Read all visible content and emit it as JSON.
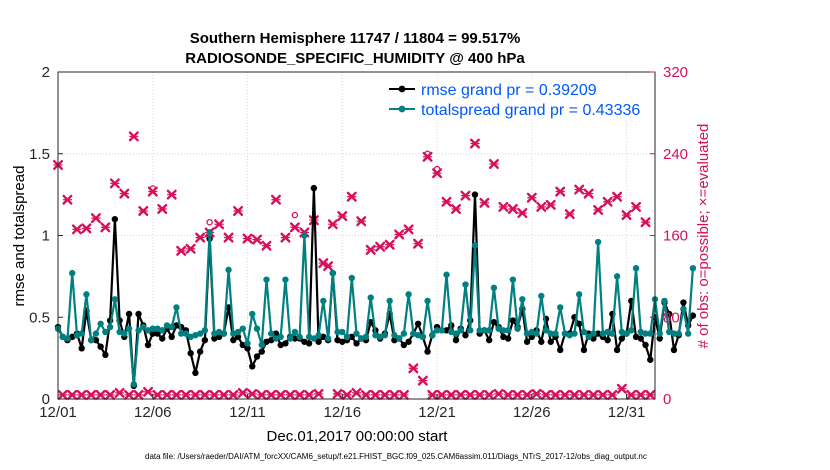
{
  "colors": {
    "rmse": "#000000",
    "spread": "#008080",
    "obs": "#d6105c",
    "legend_text": "#0057ff",
    "axis": "#262626",
    "grid": "#d7d7d7"
  },
  "chart_data": {
    "type": "line",
    "title": "Southern Hemisphere 11747 / 11804 = 99.517%",
    "subtitle": "RADIOSONDE_SPECIFIC_HUMIDITY @ 400 hPa",
    "xlabel": "Dec.01,2017 00:00:00 start",
    "ylabel_left": "rmse and totalspread",
    "ylabel_right": "# of obs: o=possible; ×=evaluated",
    "footer": "data file: /Users/raeder/DAI/ATM_forcXX/CAM6_setup/f.e21.FHIST_BGC.f09_025.CAM6assim.011/Diags_NTrS_2017-12/obs_diag_output.nc",
    "xlim": [
      0,
      31.5
    ],
    "ylim_left": [
      0,
      2
    ],
    "ylim_right": [
      0,
      320
    ],
    "x_ticks": [
      0,
      5,
      10,
      15,
      20,
      25,
      30
    ],
    "x_tick_labels": [
      "12/01",
      "12/06",
      "12/11",
      "12/16",
      "12/21",
      "12/26",
      "12/31"
    ],
    "y_left_ticks": [
      0,
      0.5,
      1,
      1.5,
      2
    ],
    "y_left_tick_labels": [
      "0",
      "0.5",
      "1",
      "1.5",
      "2"
    ],
    "y_right_ticks": [
      0,
      80,
      160,
      240,
      320
    ],
    "y_right_tick_labels": [
      "0",
      "80",
      "160",
      "240",
      "320"
    ],
    "legend_position": "top-right",
    "x_step_days": 0.25,
    "series": [
      {
        "name": "rmse",
        "legend": "rmse grand pr = 0.39209",
        "values": [
          0.44,
          0.38,
          0.36,
          0.38,
          0.4,
          0.31,
          0.54,
          0.36,
          0.36,
          0.32,
          0.27,
          0.48,
          1.1,
          0.48,
          0.38,
          0.52,
          0.08,
          0.52,
          0.45,
          0.33,
          0.4,
          0.4,
          0.37,
          0.43,
          0.38,
          0.45,
          0.44,
          0.42,
          0.28,
          0.16,
          0.29,
          0.36,
          0.98,
          0.37,
          0.38,
          0.4,
          0.56,
          0.36,
          0.38,
          0.33,
          0.31,
          0.2,
          0.26,
          0.29,
          0.35,
          0.36,
          0.4,
          0.33,
          0.34,
          0.38,
          0.37,
          0.37,
          0.35,
          0.34,
          1.29,
          0.35,
          0.38,
          0.36,
          0.77,
          0.36,
          0.35,
          0.36,
          0.38,
          0.34,
          0.37,
          0.36,
          0.47,
          0.42,
          0.37,
          0.4,
          0.52,
          0.36,
          0.37,
          0.33,
          0.35,
          0.4,
          0.46,
          0.38,
          0.29,
          0.39,
          0.44,
          0.42,
          0.42,
          0.45,
          0.36,
          0.43,
          0.39,
          0.48,
          1.25,
          0.4,
          0.42,
          0.36,
          0.47,
          0.44,
          0.38,
          0.37,
          0.48,
          0.44,
          0.55,
          0.35,
          0.38,
          0.42,
          0.35,
          0.49,
          0.35,
          0.38,
          0.3,
          0.4,
          0.4,
          0.5,
          0.46,
          0.3,
          0.4,
          0.37,
          0.4,
          0.38,
          0.36,
          0.52,
          0.3,
          0.37,
          0.4,
          0.6,
          0.38,
          0.37,
          0.33,
          0.24,
          0.5,
          0.37,
          0.59,
          0.52,
          0.3,
          0.39,
          0.59,
          0.45,
          0.51
        ]
      },
      {
        "name": "totalspread",
        "legend": "totalspread grand pr = 0.43336",
        "values": [
          0.43,
          0.38,
          0.37,
          0.77,
          0.39,
          0.4,
          0.64,
          0.36,
          0.4,
          0.46,
          0.41,
          0.44,
          0.61,
          0.41,
          0.4,
          0.43,
          0.09,
          0.42,
          0.44,
          0.42,
          0.43,
          0.43,
          0.42,
          0.45,
          0.44,
          0.56,
          0.4,
          0.4,
          0.38,
          0.39,
          0.4,
          0.42,
          1.02,
          0.4,
          0.41,
          0.4,
          0.79,
          0.4,
          0.41,
          0.43,
          0.34,
          0.52,
          0.43,
          0.33,
          0.73,
          0.4,
          0.37,
          0.38,
          0.73,
          0.37,
          0.41,
          0.38,
          1.0,
          0.38,
          0.37,
          0.39,
          0.6,
          0.37,
          0.77,
          0.41,
          0.41,
          0.38,
          0.74,
          0.4,
          0.37,
          0.38,
          0.62,
          0.39,
          0.38,
          0.39,
          0.6,
          0.39,
          0.37,
          0.4,
          0.64,
          0.4,
          0.39,
          0.38,
          0.6,
          0.39,
          0.42,
          0.42,
          0.76,
          0.41,
          0.4,
          0.42,
          0.7,
          0.42,
          0.94,
          0.42,
          0.42,
          0.42,
          0.68,
          0.43,
          0.42,
          0.42,
          0.73,
          0.43,
          0.61,
          0.4,
          0.41,
          0.4,
          0.63,
          0.42,
          0.4,
          0.4,
          0.56,
          0.4,
          0.39,
          0.4,
          0.64,
          0.41,
          0.38,
          0.4,
          0.96,
          0.4,
          0.41,
          0.4,
          0.75,
          0.41,
          0.4,
          0.42,
          0.8,
          0.41,
          0.4,
          0.4,
          0.61,
          0.4,
          0.6,
          0.41,
          0.4,
          0.4,
          0.55,
          0.4,
          0.8
        ]
      },
      {
        "name": "obs_evaluated",
        "values": [
          229,
          4,
          195,
          4,
          166,
          4,
          167,
          4,
          177,
          4,
          168,
          4,
          211,
          6,
          201,
          4,
          257,
          4,
          184,
          7,
          203,
          4,
          186,
          4,
          200,
          4,
          145,
          4,
          147,
          4,
          158,
          4,
          163,
          4,
          171,
          4,
          158,
          4,
          184,
          6,
          157,
          5,
          156,
          4,
          150,
          4,
          195,
          4,
          158,
          4,
          168,
          4,
          163,
          4,
          175,
          5,
          133,
          130,
          171,
          5,
          179,
          4,
          198,
          6,
          174,
          4,
          146,
          4,
          149,
          4,
          151,
          4,
          161,
          4,
          166,
          30,
          152,
          18,
          237,
          4,
          221,
          4,
          193,
          4,
          186,
          4,
          199,
          4,
          250,
          4,
          192,
          4,
          230,
          5,
          188,
          4,
          186,
          4,
          182,
          4,
          197,
          5,
          188,
          4,
          190,
          4,
          203,
          4,
          181,
          4,
          205,
          4,
          201,
          4,
          185,
          4,
          193,
          4,
          198,
          10,
          180,
          4,
          188,
          4,
          173,
          4
        ]
      },
      {
        "name": "obs_possible",
        "values": [
          230,
          5,
          196,
          5,
          167,
          5,
          168,
          5,
          178,
          5,
          169,
          5,
          212,
          7,
          202,
          5,
          258,
          5,
          185,
          8,
          206,
          5,
          187,
          5,
          201,
          5,
          146,
          5,
          148,
          5,
          159,
          5,
          173,
          5,
          172,
          5,
          159,
          5,
          185,
          7,
          158,
          6,
          157,
          5,
          151,
          5,
          196,
          5,
          159,
          5,
          180,
          5,
          164,
          5,
          176,
          6,
          135,
          131,
          172,
          6,
          180,
          5,
          199,
          7,
          175,
          5,
          147,
          5,
          150,
          5,
          152,
          5,
          162,
          5,
          167,
          31,
          153,
          19,
          240,
          5,
          225,
          5,
          194,
          5,
          187,
          5,
          200,
          5,
          251,
          5,
          193,
          5,
          231,
          6,
          189,
          5,
          187,
          5,
          183,
          5,
          198,
          6,
          189,
          5,
          191,
          5,
          204,
          5,
          182,
          5,
          206,
          5,
          202,
          5,
          186,
          5,
          194,
          5,
          199,
          11,
          180,
          5,
          189,
          5,
          174,
          5
        ]
      }
    ]
  }
}
